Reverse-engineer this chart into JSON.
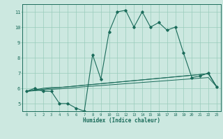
{
  "xlabel": "Humidex (Indice chaleur)",
  "ylabel": "",
  "xlim": [
    -0.5,
    23.5
  ],
  "ylim": [
    4.5,
    11.5
  ],
  "xticks": [
    0,
    1,
    2,
    3,
    4,
    5,
    6,
    7,
    8,
    9,
    10,
    11,
    12,
    13,
    14,
    15,
    16,
    17,
    18,
    19,
    20,
    21,
    22,
    23
  ],
  "yticks": [
    5,
    6,
    7,
    8,
    9,
    10,
    11
  ],
  "background_color": "#cce8e0",
  "grid_color": "#99ccbb",
  "line_color": "#1a6b5a",
  "series": {
    "main": [
      5.8,
      6.0,
      5.8,
      5.8,
      5.0,
      5.0,
      4.7,
      4.5,
      8.2,
      6.6,
      9.7,
      11.0,
      11.1,
      10.0,
      11.0,
      10.0,
      10.3,
      9.8,
      10.0,
      8.3,
      6.7,
      6.8,
      7.0,
      6.1
    ],
    "line1": [
      5.8,
      5.9,
      6.0,
      6.05,
      6.05,
      6.1,
      6.15,
      6.2,
      6.25,
      6.3,
      6.35,
      6.4,
      6.45,
      6.5,
      6.55,
      6.6,
      6.65,
      6.7,
      6.75,
      6.8,
      6.85,
      6.9,
      6.95,
      6.1
    ],
    "line2": [
      5.8,
      5.87,
      5.94,
      6.0,
      6.05,
      6.1,
      6.15,
      6.2,
      6.25,
      6.3,
      6.35,
      6.4,
      6.45,
      6.5,
      6.55,
      6.6,
      6.65,
      6.7,
      6.75,
      6.8,
      6.85,
      6.9,
      6.95,
      6.1
    ],
    "line3": [
      5.8,
      5.84,
      5.88,
      5.93,
      5.96,
      6.0,
      6.05,
      6.1,
      6.14,
      6.18,
      6.22,
      6.26,
      6.3,
      6.34,
      6.38,
      6.42,
      6.46,
      6.5,
      6.54,
      6.58,
      6.62,
      6.66,
      6.7,
      6.1
    ]
  }
}
